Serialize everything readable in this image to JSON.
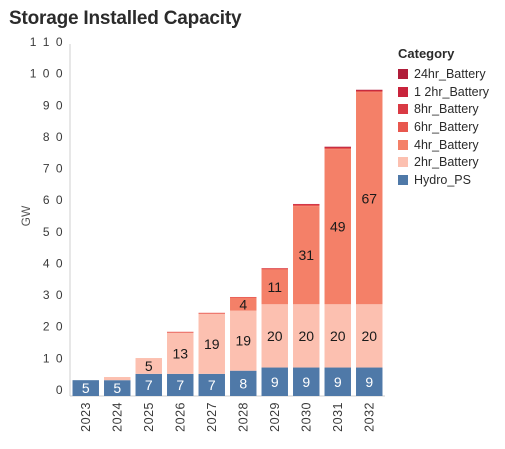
{
  "title": "Storage Installed Capacity",
  "legend": {
    "title": "Category",
    "items": [
      {
        "name": "24hr_Battery",
        "color": "#b01d3a"
      },
      {
        "name": "1 2hr_Battery",
        "color": "#c9243c"
      },
      {
        "name": "8hr_Battery",
        "color": "#d93a44"
      },
      {
        "name": "6hr_Battery",
        "color": "#e8574e"
      },
      {
        "name": "4hr_Battery",
        "color": "#f48068"
      },
      {
        "name": "2hr_Battery",
        "color": "#fcc0b0"
      },
      {
        "name": "Hydro_PS",
        "color": "#4f79a8"
      }
    ]
  },
  "chart_data": {
    "type": "bar",
    "stacked": true,
    "title": "Storage Installed Capacity",
    "xlabel": "",
    "ylabel": "GW",
    "ylim": [
      0,
      110
    ],
    "yticks": [
      "0",
      "1 0",
      "2 0",
      "3 0",
      "4 0",
      "5 0",
      "6 0",
      "7 0",
      "8 0",
      "9 0",
      "1 0 0",
      "1 1 0"
    ],
    "categories": [
      "2023",
      "2024",
      "2025",
      "2026",
      "2027",
      "2028",
      "2029",
      "2030",
      "2031",
      "2032"
    ],
    "series": [
      {
        "name": "Hydro_PS",
        "color": "#4f79a8",
        "values": [
          5,
          5,
          7,
          7,
          7,
          8,
          9,
          9,
          9,
          9
        ],
        "labels": [
          "5",
          "5",
          "7",
          "7",
          "7",
          "8",
          "9",
          "9",
          "9",
          "9"
        ]
      },
      {
        "name": "2hr_Battery",
        "color": "#fcc0b0",
        "values": [
          0,
          1,
          5,
          13,
          19,
          19,
          20,
          20,
          20,
          20
        ],
        "labels": [
          "",
          "",
          "5",
          "13",
          "19",
          "19",
          "20",
          "20",
          "20",
          "20"
        ]
      },
      {
        "name": "4hr_Battery",
        "color": "#f48068",
        "values": [
          0,
          0,
          0,
          0,
          0,
          4,
          11,
          31,
          49,
          67
        ],
        "labels": [
          "",
          "",
          "",
          "",
          "",
          "4",
          "11",
          "31",
          "49",
          "67"
        ]
      },
      {
        "name": "6hr_Battery",
        "color": "#e8574e",
        "values": [
          0,
          0,
          0,
          0.3,
          0.3,
          0.3,
          0.3,
          0.4,
          0.4,
          0.4
        ],
        "labels": [
          "",
          "",
          "",
          "",
          "",
          "",
          "",
          "",
          "",
          ""
        ]
      },
      {
        "name": "8hr_Battery",
        "color": "#d93a44",
        "values": [
          0,
          0,
          0,
          0,
          0,
          0,
          0.1,
          0.2,
          0.2,
          0.2
        ],
        "labels": [
          "",
          "",
          "",
          "",
          "",
          "",
          "",
          "",
          "",
          ""
        ]
      },
      {
        "name": "1 2hr_Battery",
        "color": "#c9243c",
        "values": [
          0,
          0,
          0,
          0,
          0,
          0,
          0,
          0.1,
          0.1,
          0.1
        ],
        "labels": [
          "",
          "",
          "",
          "",
          "",
          "",
          "",
          "",
          "",
          ""
        ]
      },
      {
        "name": "24hr_Battery",
        "color": "#b01d3a",
        "values": [
          0,
          0,
          0,
          0,
          0,
          0,
          0,
          0,
          0.1,
          0.1
        ],
        "labels": [
          "",
          "",
          "",
          "",
          "",
          "",
          "",
          "",
          "",
          ""
        ]
      }
    ],
    "grid": false,
    "legend_position": "right"
  }
}
